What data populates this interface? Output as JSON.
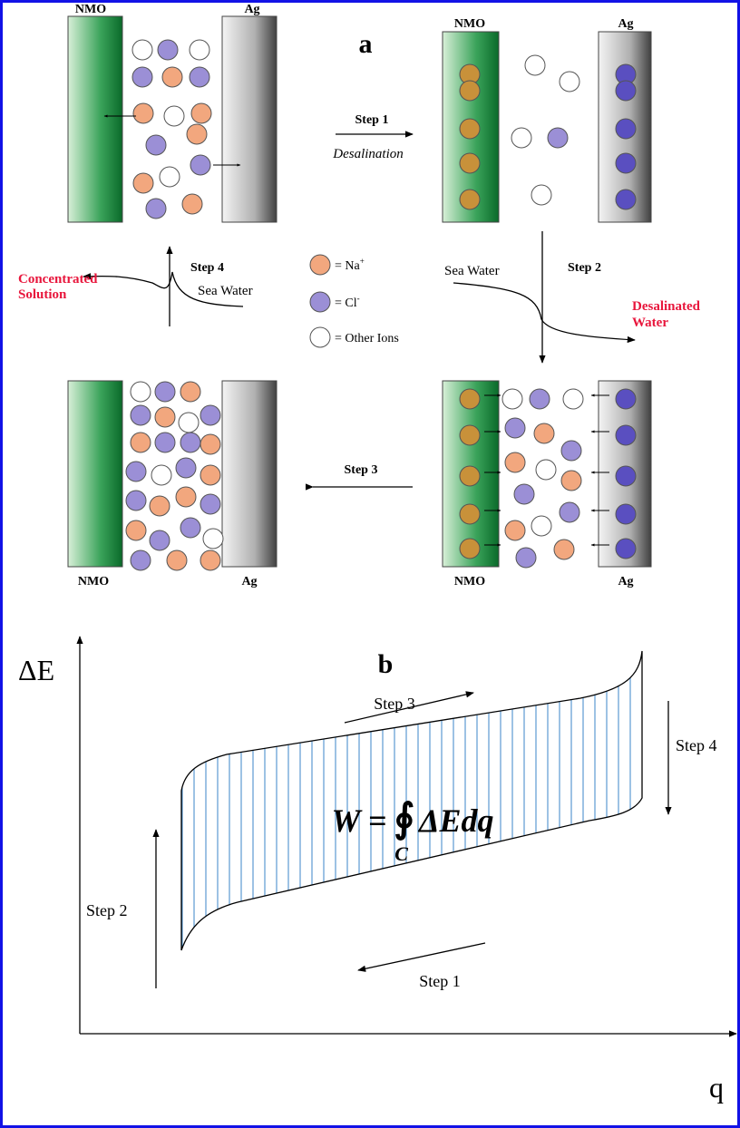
{
  "panel_a": {
    "label": "a",
    "nmo": "NMO",
    "ag": "Ag",
    "step1": "Step 1",
    "step1_note": "Desalination",
    "step2": "Step 2",
    "step3": "Step 3",
    "step4": "Step 4",
    "concentrated": [
      "Concentrated",
      "Solution"
    ],
    "sea_water": "Sea Water",
    "desalinated": [
      "Desalinated",
      "Water"
    ],
    "legend": [
      {
        "text": "= Na",
        "sup": "+"
      },
      {
        "text": "= Cl",
        "sup": "-"
      },
      {
        "text": "= Other Ions"
      }
    ]
  },
  "panel_b": {
    "label": "b",
    "y_axis": "ΔE",
    "x_axis": "q",
    "step1": "Step 1",
    "step2": "Step 2",
    "step3": "Step 3",
    "step4": "Step 4",
    "formula": {
      "lhs": "W =",
      "integral": "∮",
      "sub": "C",
      "rhs": "ΔEdq"
    }
  }
}
